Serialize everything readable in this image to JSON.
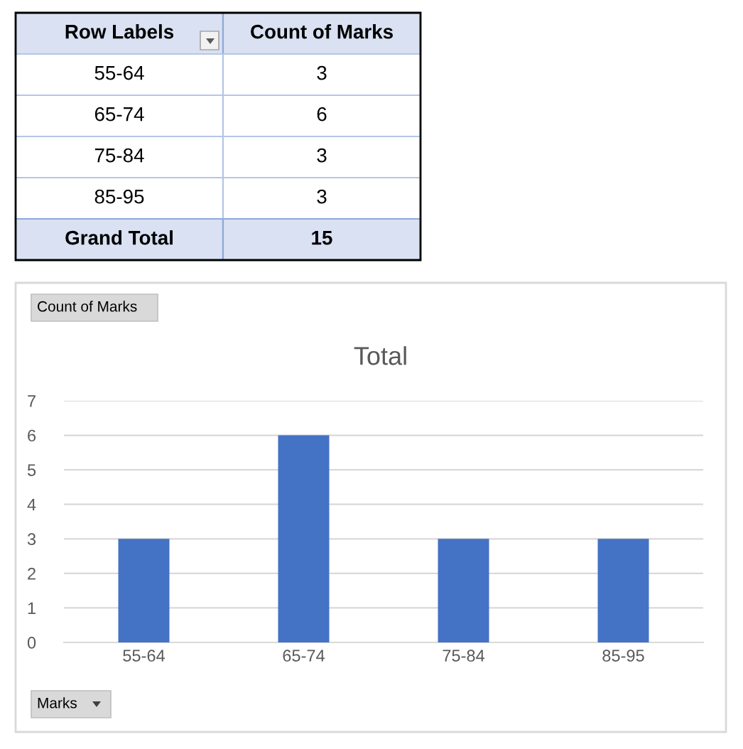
{
  "chart_data": {
    "type": "bar",
    "title": "Total",
    "categories": [
      "55-64",
      "65-74",
      "75-84",
      "85-95"
    ],
    "values": [
      3,
      6,
      3,
      3
    ],
    "color": "#4472c4",
    "ylim": [
      0,
      7
    ],
    "yticks": [
      0,
      1,
      2,
      3,
      4,
      5,
      6,
      7
    ],
    "grid": "y",
    "annotations": [
      "Row Labels",
      "Count of Marks",
      "3",
      "6",
      "3",
      "3",
      "Grand Total",
      "15",
      "Count of Marks",
      "Marks"
    ]
  }
}
